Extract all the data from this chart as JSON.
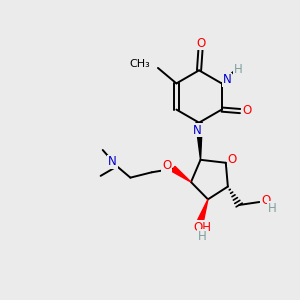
{
  "background_color": "#ebebeb",
  "bond_color": "#000000",
  "O_color": "#ff0000",
  "N_color": "#0000cc",
  "H_color": "#7f9f9f",
  "fig_width": 3.0,
  "fig_height": 3.0,
  "dpi": 100,
  "xlim": [
    0,
    10
  ],
  "ylim": [
    0,
    10
  ]
}
